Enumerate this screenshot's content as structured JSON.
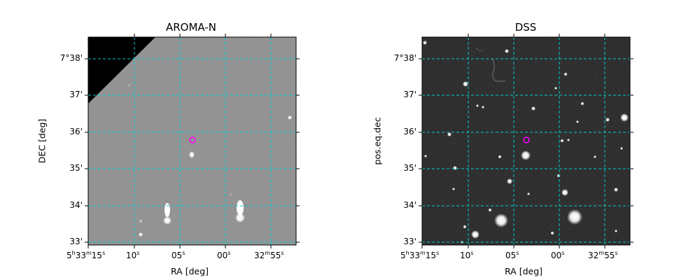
{
  "left_panel": {
    "title": "AROMA-N",
    "xlabel": "RA [deg]",
    "ylabel": "DEC [deg]",
    "x_ticks": [
      {
        "main": "5",
        "s1": "h",
        "m": "33",
        "s2": "m",
        "v": "15",
        "s3": "s"
      },
      {
        "main": "10",
        "s3": "s"
      },
      {
        "main": "05",
        "s3": "s"
      },
      {
        "main": "00",
        "s3": "s"
      },
      {
        "main": "32",
        "s2": "m",
        "v": "55",
        "s3": "s"
      }
    ],
    "y_ticks": [
      "7°38'",
      "37'",
      "36'",
      "35'",
      "34'",
      "33'"
    ]
  },
  "right_panel": {
    "title": "DSS",
    "xlabel": "RA [deg]",
    "ylabel": "pos.eq.dec",
    "x_ticks": [
      {
        "main": "5",
        "s1": "h",
        "m": "33",
        "s2": "m",
        "v": "15",
        "s3": "s"
      },
      {
        "main": "10",
        "s3": "s"
      },
      {
        "main": "05",
        "s3": "s"
      },
      {
        "main": "00",
        "s3": "s"
      },
      {
        "main": "32",
        "s2": "m",
        "v": "55",
        "s3": "s"
      }
    ],
    "y_ticks": [
      "7°38'",
      "37'",
      "36'",
      "35'",
      "34'",
      "33'"
    ]
  },
  "colors": {
    "grid": "#00cccc",
    "marker": "#ff00ff",
    "aroma_bg": "#8a8a8a",
    "dss_bg": "#1c1c1c"
  }
}
